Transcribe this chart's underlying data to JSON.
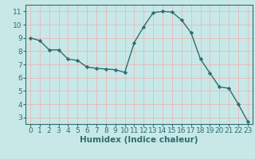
{
  "x": [
    0,
    1,
    2,
    3,
    4,
    5,
    6,
    7,
    8,
    9,
    10,
    11,
    12,
    13,
    14,
    15,
    16,
    17,
    18,
    19,
    20,
    21,
    22,
    23
  ],
  "y": [
    9.0,
    8.8,
    8.1,
    8.1,
    7.4,
    7.3,
    6.8,
    6.7,
    6.65,
    6.6,
    6.4,
    8.65,
    9.85,
    10.9,
    11.0,
    10.95,
    10.35,
    9.4,
    7.4,
    6.35,
    5.3,
    5.2,
    4.0,
    2.7
  ],
  "line_color": "#2d6e6e",
  "marker": "D",
  "marker_size": 2.2,
  "bg_color": "#c8e8e8",
  "grid_color": "#e8b8b8",
  "xlabel": "Humidex (Indice chaleur)",
  "ylim": [
    2.5,
    11.5
  ],
  "xlim": [
    -0.5,
    23.5
  ],
  "yticks": [
    3,
    4,
    5,
    6,
    7,
    8,
    9,
    10,
    11
  ],
  "xticks": [
    0,
    1,
    2,
    3,
    4,
    5,
    6,
    7,
    8,
    9,
    10,
    11,
    12,
    13,
    14,
    15,
    16,
    17,
    18,
    19,
    20,
    21,
    22,
    23
  ],
  "axis_color": "#2d6e6e",
  "font_size": 6.5,
  "xlabel_fontsize": 7.5
}
